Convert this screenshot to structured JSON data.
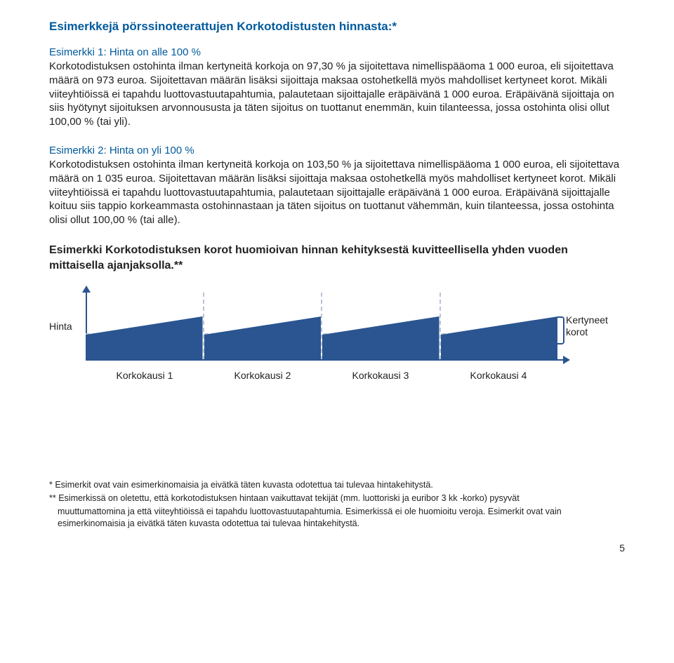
{
  "title": "Esimerkkejä pörssinoteerattujen Korkotodistusten hinnasta:*",
  "example1": {
    "title": "Esimerkki 1: Hinta on alle 100 %",
    "body": "Korkotodistuksen ostohinta ilman kertyneitä korkoja on 97,30 % ja sijoitettava nimellispääoma 1 000 euroa, eli sijoitettava määrä on 973 euroa. Sijoitettavan määrän lisäksi sijoittaja maksaa ostohetkellä myös mahdolliset kertyneet korot. Mikäli viiteyhtiöissä ei tapahdu luottovastuutapahtumia, palautetaan sijoittajalle eräpäivänä 1 000 euroa. Eräpäivänä sijoittaja on siis hyötynyt sijoituksen arvonnoususta ja täten sijoitus on tuottanut enemmän, kuin tilanteessa, jossa ostohinta olisi ollut 100,00 % (tai yli)."
  },
  "example2": {
    "title": "Esimerkki 2: Hinta on yli 100 %",
    "body": "Korkotodistuksen ostohinta ilman kertyneitä korkoja on 103,50 % ja sijoitettava nimellispääoma 1 000 euroa, eli sijoitettava määrä on 1 035 euroa. Sijoitettavan määrän lisäksi sijoittaja maksaa ostohetkellä myös mahdolliset kertyneet korot. Mikäli viiteyhtiöissä ei tapahdu luottovastuutapahtumia, palautetaan sijoittajalle eräpäivänä 1 000 euroa. Eräpäivänä sijoittajalle koituu siis tappio korkeammasta ostohinnastaan ja täten sijoitus on tuottanut vähemmän, kuin tilanteessa, jossa ostohinta olisi ollut 100,00 % (tai alle)."
  },
  "sectionTitle": "Esimerkki Korkotodistuksen korot huomioivan hinnan kehityksestä kuvitteellisella yhden vuoden mittaisella ajanjaksolla.**",
  "chart": {
    "yLabel": "Hinta",
    "rightLabel": "Kertyneet korot",
    "fill": "#2a5590",
    "dashed": "#b8c4d6",
    "periods": [
      "Korkokausi 1",
      "Korkokausi 2",
      "Korkokausi 3",
      "Korkokausi 4"
    ],
    "baseHeight": 36,
    "wedgeRise": 26
  },
  "footnotes": {
    "f1": "* Esimerkit ovat vain esimerkinomaisia ja eivätkä täten kuvasta odotettua tai tulevaa hintakehitystä.",
    "f2a": "** Esimerkissä on oletettu, että korkotodistuksen hintaan vaikuttavat tekijät (mm. luottoriski ja euribor 3 kk -korko) pysyvät",
    "f2b": "muuttumattomina ja että viiteyhtiöissä ei tapahdu luottovastuutapahtumia. Esimerkissä ei ole huomioitu veroja. Esimerkit ovat vain esimerkinomaisia ja eivätkä täten kuvasta odotettua tai tulevaa hintakehitystä."
  },
  "pageNumber": "5"
}
